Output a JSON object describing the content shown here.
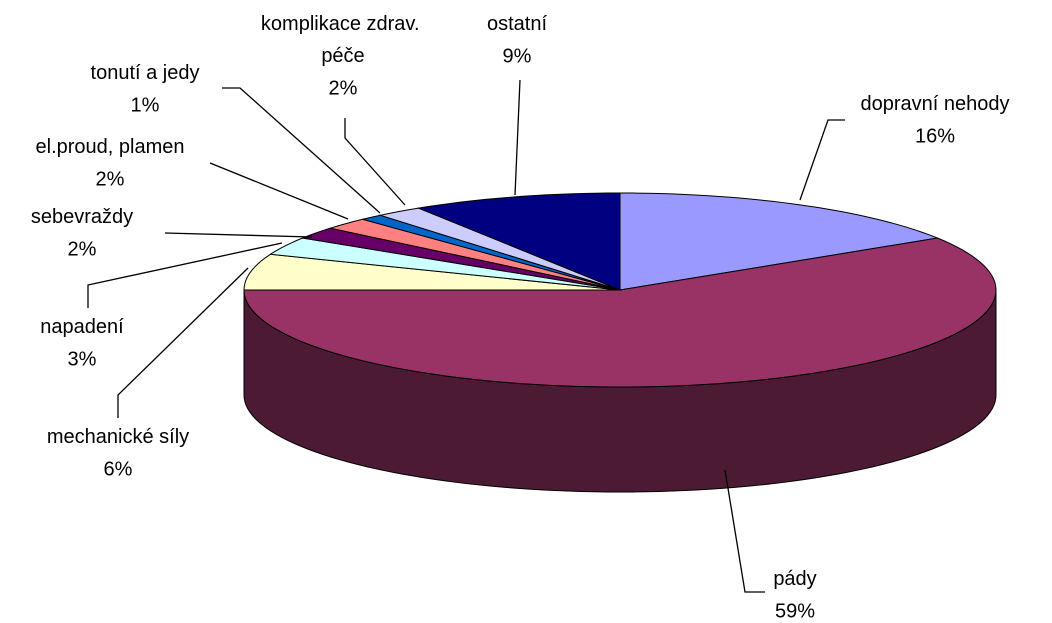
{
  "chart_data": {
    "type": "pie",
    "three_d": true,
    "categories": [
      "dopravní nehody",
      "pády",
      "mechanické síly",
      "napadení",
      "sebevraždy",
      "el.proud, plamen",
      "tonutí a jedy",
      "komplikace zdrav. péče",
      "ostatní"
    ],
    "values": [
      16,
      59,
      6,
      3,
      2,
      2,
      1,
      2,
      9
    ],
    "value_labels": [
      "16%",
      "59%",
      "6%",
      "3%",
      "2%",
      "2%",
      "1%",
      "2%",
      "9%"
    ],
    "colors": [
      "#9999ff",
      "#993366",
      "#ffffcc",
      "#ccffff",
      "#660066",
      "#ff8080",
      "#0066cc",
      "#ccccff",
      "#000080"
    ]
  }
}
